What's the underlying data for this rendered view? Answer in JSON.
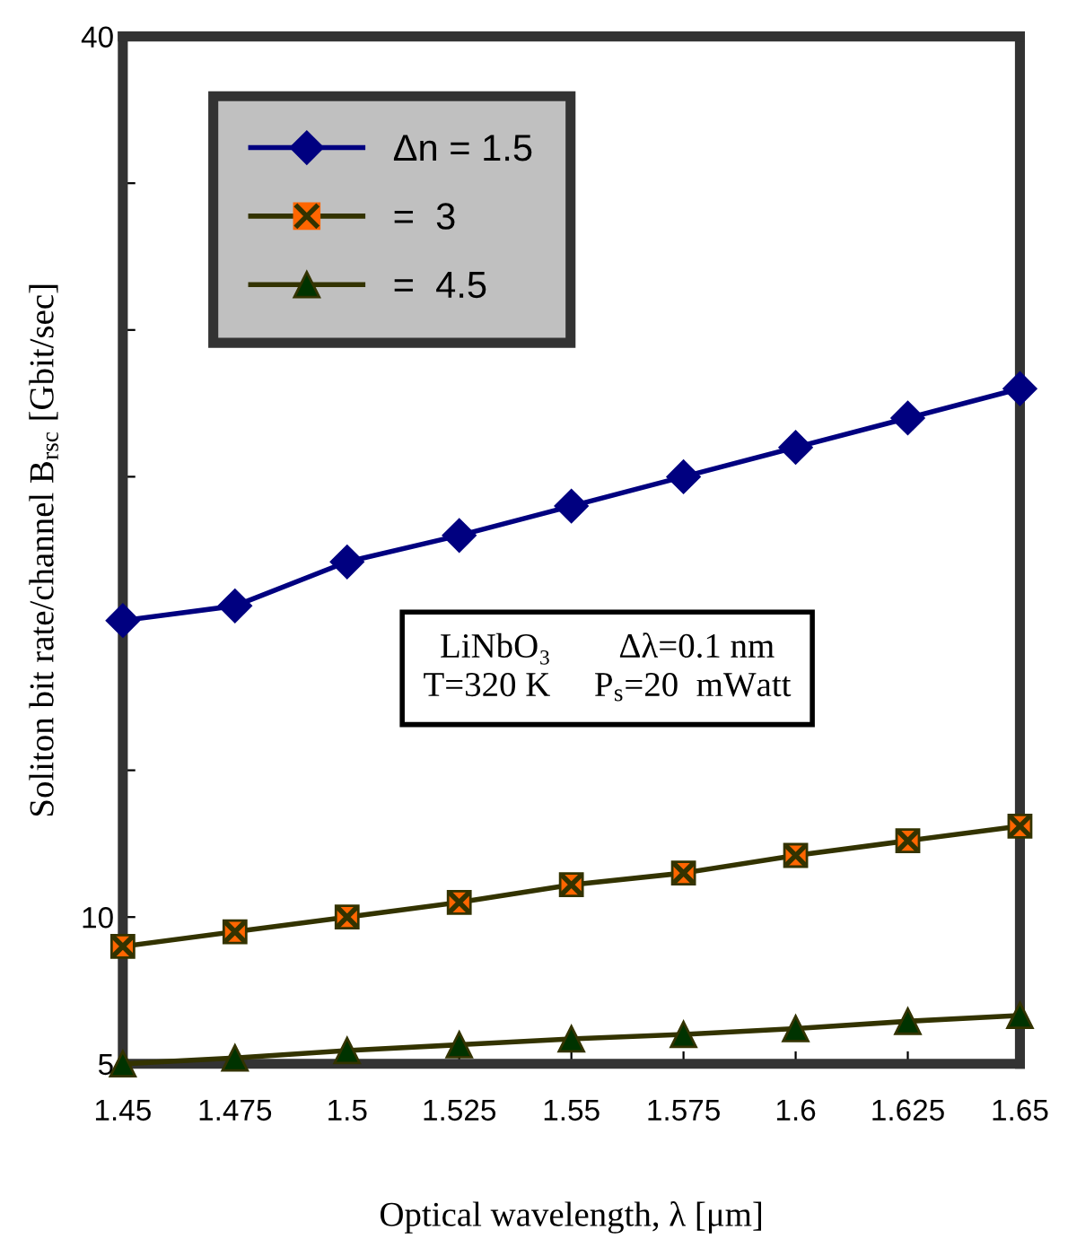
{
  "chart_data": {
    "type": "line",
    "xlabel": "Optical wavelength, λ [μm]",
    "ylabel": "Soliton bit rate/channel B$_{rsc}$ [Gbit/sec]",
    "x": [
      1.45,
      1.475,
      1.5,
      1.525,
      1.55,
      1.575,
      1.6,
      1.625,
      1.65
    ],
    "xlim": [
      1.45,
      1.65
    ],
    "xticks": [
      1.45,
      1.475,
      1.5,
      1.525,
      1.55,
      1.575,
      1.6,
      1.625,
      1.65
    ],
    "ylim": [
      5,
      40
    ],
    "yticks": [
      5,
      10,
      {
        "value": 15,
        "label": null
      },
      {
        "value": 20,
        "label": null
      },
      {
        "value": 25,
        "label": null
      },
      {
        "value": 30,
        "label": null
      },
      {
        "value": 35,
        "label": null
      },
      40
    ],
    "series": [
      {
        "name": "Δn = 1.5",
        "color": "#000080",
        "marker": "diamond",
        "values": [
          20.1,
          20.6,
          22.1,
          23.0,
          24.0,
          25.0,
          26.0,
          27.0,
          28.0
        ]
      },
      {
        "name": "=  3",
        "color": "#ff6600",
        "marker": "square",
        "values": [
          9.0,
          9.5,
          10.0,
          10.5,
          11.1,
          11.5,
          12.1,
          12.6,
          13.1
        ]
      },
      {
        "name": "=  4.5",
        "color": "#003300",
        "marker": "triangle",
        "values": [
          5.0,
          5.2,
          5.45,
          5.65,
          5.85,
          6.0,
          6.2,
          6.45,
          6.65
        ]
      }
    ],
    "legend": "top left",
    "grid": false,
    "annotations": [
      "LiNbO₃        Δλ=0.1 nm\nT=320 K     P$_{s}$=20  mWatt"
    ]
  }
}
